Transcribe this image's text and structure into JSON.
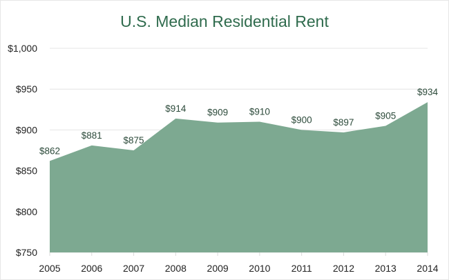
{
  "chart_data": {
    "type": "area",
    "title": "U.S. Median Residential Rent",
    "xlabel": "",
    "ylabel": "",
    "categories": [
      "2005",
      "2006",
      "2007",
      "2008",
      "2009",
      "2010",
      "2011",
      "2012",
      "2013",
      "2014"
    ],
    "values": [
      862,
      881,
      875,
      914,
      909,
      910,
      900,
      897,
      905,
      934
    ],
    "data_labels": [
      "$862",
      "$881",
      "$875",
      "$914",
      "$909",
      "$910",
      "$900",
      "$897",
      "$905",
      "$934"
    ],
    "ylim": [
      750,
      1000
    ],
    "yticks": [
      750,
      800,
      850,
      900,
      950,
      1000
    ],
    "ytick_labels": [
      "$750",
      "$800",
      "$850",
      "$900",
      "$950",
      "$1,000"
    ],
    "grid": true,
    "legend": "none",
    "colors": {
      "fill": "#7da991",
      "title": "#2f6b4d",
      "grid": "#e4e4e4"
    }
  }
}
